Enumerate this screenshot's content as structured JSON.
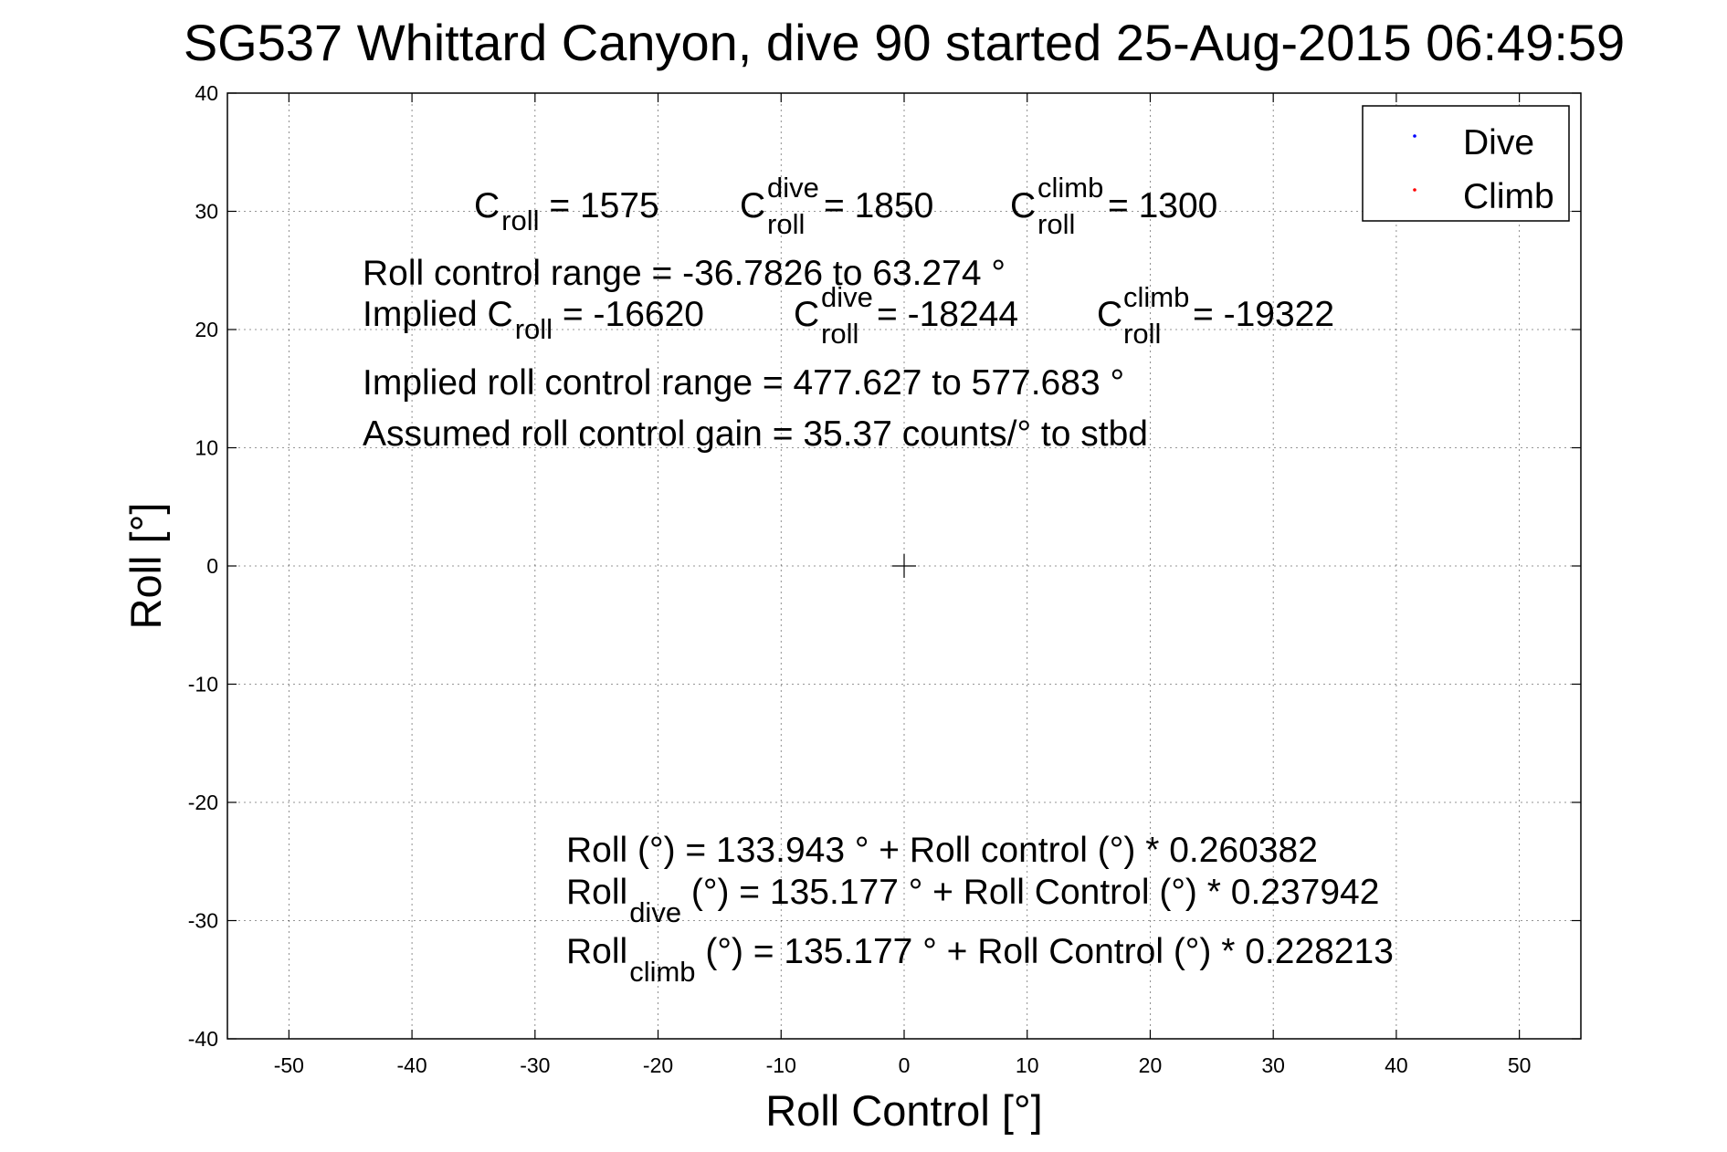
{
  "chart_data": {
    "type": "scatter",
    "title": "SG537 Whittard Canyon, dive 90 started 25-Aug-2015 06:49:59",
    "xlabel": "Roll Control [°]",
    "ylabel": "Roll [°]",
    "xlim": [
      -55,
      55
    ],
    "ylim": [
      -40,
      40
    ],
    "xticks": [
      -50,
      -40,
      -30,
      -20,
      -10,
      0,
      10,
      20,
      30,
      40,
      50
    ],
    "yticks": [
      -40,
      -30,
      -20,
      -10,
      0,
      10,
      20,
      30,
      40
    ],
    "grid": true,
    "legend": "top-right",
    "series": [
      {
        "name": "Dive",
        "color": "#0000ff",
        "x": [],
        "y": []
      },
      {
        "name": "Climb",
        "color": "#ff0000",
        "x": [],
        "y": []
      }
    ],
    "center_marker": {
      "x": 0,
      "y": 0
    },
    "annotations": {
      "c_roll": {
        "base": "C",
        "sub": "roll",
        "value": " = 1575"
      },
      "c_roll_dive": {
        "base": "C",
        "sup": "dive",
        "sub": "roll",
        "value": " = 1850"
      },
      "c_roll_climb": {
        "base": "C",
        "sup": "climb",
        "sub": "roll",
        "value": " = 1300"
      },
      "roll_control_range": "Roll control range = -36.7826 to 63.274 °",
      "implied_c_roll": {
        "prefix": "Implied C",
        "sub": "roll",
        "value": " = -16620"
      },
      "implied_c_roll_dive": {
        "base": "C",
        "sup": "dive",
        "sub": "roll",
        "value": " = -18244"
      },
      "implied_c_roll_climb": {
        "base": "C",
        "sup": "climb",
        "sub": "roll",
        "value": " = -19322"
      },
      "implied_range": "Implied roll control range = 477.627 to 577.683 °",
      "gain": "Assumed roll control gain = 35.37 counts/° to stbd",
      "fit_all": "Roll (°) = 133.943 ° + Roll control (°) * 0.260382",
      "fit_dive": {
        "base": "Roll",
        "sub": "dive",
        "value": " (°) = 135.177 ° + Roll Control (°) * 0.237942"
      },
      "fit_climb": {
        "base": "Roll",
        "sub": "climb",
        "value": " (°) = 135.177 ° + Roll Control (°) * 0.228213"
      }
    }
  }
}
